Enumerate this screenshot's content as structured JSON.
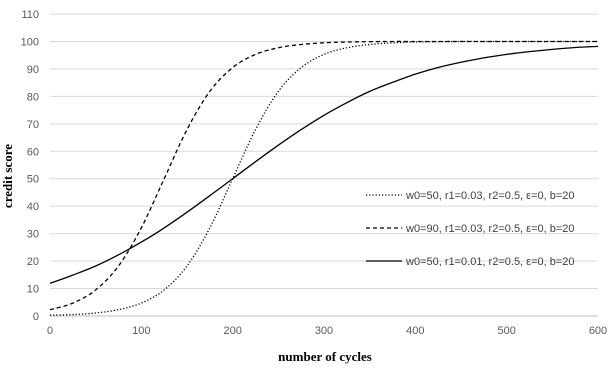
{
  "chart_data": {
    "type": "line",
    "title": "",
    "xlabel": "number  of cycles",
    "ylabel": "credit score",
    "xlim": [
      0,
      600
    ],
    "ylim": [
      0,
      110
    ],
    "x_ticks": [
      0,
      100,
      200,
      300,
      400,
      500,
      600
    ],
    "y_ticks": [
      0,
      10,
      20,
      30,
      40,
      50,
      60,
      70,
      80,
      90,
      100,
      110
    ],
    "grid": "horizontal",
    "legend_position": "right",
    "x": [
      0,
      25,
      50,
      75,
      100,
      125,
      150,
      175,
      200,
      225,
      250,
      275,
      300,
      325,
      350,
      375,
      400,
      425,
      450,
      475,
      500,
      525,
      550,
      575,
      600
    ],
    "series": [
      {
        "name": "w0=50, r1=0.03,  r2=0.5,  ε=0,  b=20",
        "style": "dotted",
        "values": [
          0.3,
          0.5,
          1.1,
          2.3,
          4.7,
          9.5,
          18.2,
          32.1,
          50.0,
          67.9,
          81.8,
          90.5,
          95.3,
          97.7,
          98.9,
          99.5,
          99.8,
          99.9,
          100,
          100,
          100,
          100,
          100,
          100,
          100
        ]
      },
      {
        "name": "w0=90, r1=0.03,  r2=0.5,  ε=0,  b=20",
        "style": "dashed",
        "values": [
          2.3,
          4.7,
          9.5,
          18.2,
          32.1,
          50.0,
          67.9,
          81.8,
          90.5,
          95.3,
          97.7,
          98.9,
          99.5,
          99.8,
          99.9,
          100,
          100,
          100,
          100,
          100,
          100,
          100,
          100,
          100,
          100
        ]
      },
      {
        "name": "w0=50, r1=0.01,  r2=0.5,  ε=0,  b=20",
        "style": "solid",
        "values": [
          11.9,
          14.9,
          18.2,
          22.3,
          26.9,
          32.1,
          37.8,
          43.8,
          50.0,
          56.2,
          62.2,
          67.9,
          73.1,
          77.7,
          81.8,
          85.1,
          88.1,
          90.5,
          92.4,
          94.0,
          95.3,
          96.3,
          97.1,
          97.8,
          98.2
        ]
      }
    ]
  }
}
